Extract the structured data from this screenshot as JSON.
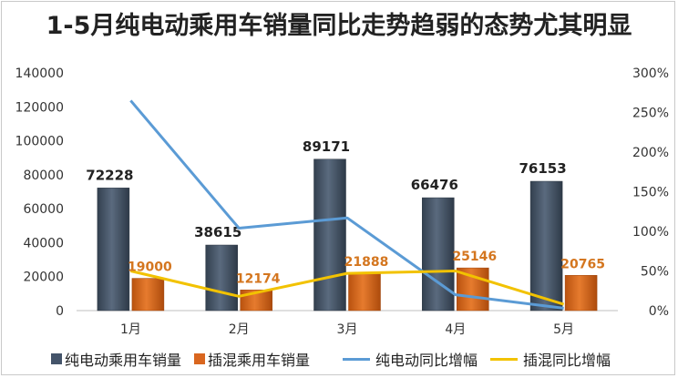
{
  "chart_data": {
    "type": "bar",
    "title": "1-5月纯电动乘用车销量同比走势趋弱的态势尤其明显",
    "categories": [
      "1月",
      "2月",
      "3月",
      "4月",
      "5月"
    ],
    "series": [
      {
        "name": "纯电动乘用车销量",
        "kind": "bar",
        "axis": "left",
        "color": "#44546a",
        "values": [
          72228,
          38615,
          89171,
          66476,
          76153
        ],
        "labels": [
          "72228",
          "38615",
          "89171",
          "66476",
          "76153"
        ]
      },
      {
        "name": "插混乘用车销量",
        "kind": "bar",
        "axis": "left",
        "color": "#d9661f",
        "values": [
          19000,
          12174,
          21888,
          25146,
          20765
        ],
        "labels": [
          "19000",
          "12174",
          "21888",
          "25146",
          "20765"
        ]
      },
      {
        "name": "纯电动同比增幅",
        "kind": "line",
        "axis": "right",
        "color": "#5b9bd5",
        "values": [
          265,
          104,
          117,
          20,
          3
        ]
      },
      {
        "name": "插混同比增幅",
        "kind": "line",
        "axis": "right",
        "color": "#f2c200",
        "values": [
          50,
          18,
          47,
          50,
          8
        ]
      }
    ],
    "left_axis": {
      "min": 0,
      "max": 140000,
      "step": 20000,
      "ticks": [
        "0",
        "20000",
        "40000",
        "60000",
        "80000",
        "100000",
        "120000",
        "140000"
      ]
    },
    "right_axis": {
      "min": 0,
      "max": 300,
      "step": 50,
      "ticks": [
        "0%",
        "50%",
        "100%",
        "150%",
        "200%",
        "250%",
        "300%"
      ]
    },
    "grid": false,
    "legend_position": "bottom"
  }
}
